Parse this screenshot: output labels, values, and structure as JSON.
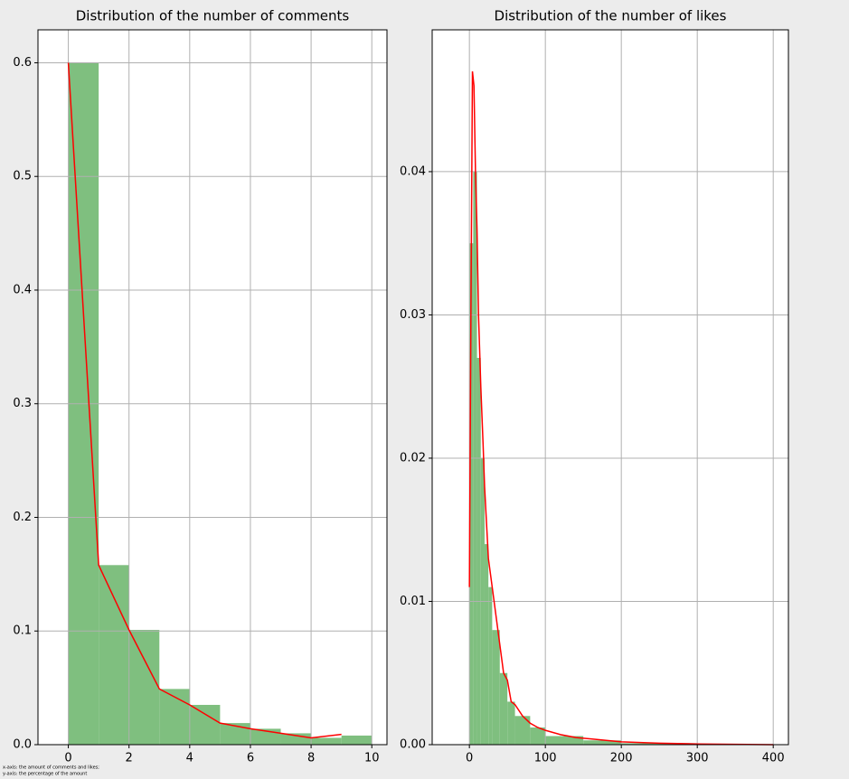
{
  "chart_data": [
    {
      "type": "histogram",
      "title": "Distribution of the number of comments",
      "bins": [
        0,
        1,
        2,
        3,
        4,
        5,
        6,
        7,
        8,
        9,
        10
      ],
      "values": [
        0.6,
        0.158,
        0.101,
        0.049,
        0.035,
        0.019,
        0.014,
        0.01,
        0.006,
        0.008
      ],
      "color": "#7fbf7f",
      "line": {
        "x": [
          0,
          1,
          2,
          3,
          4,
          5,
          6,
          7,
          8,
          9
        ],
        "values": [
          0.6,
          0.158,
          0.101,
          0.049,
          0.035,
          0.019,
          0.014,
          0.01,
          0.006,
          0.009
        ],
        "color": "#ff0000"
      },
      "xlim": [
        -1,
        10.5
      ],
      "xticks": [
        0,
        2,
        4,
        6,
        8,
        10
      ],
      "ylim": [
        0,
        0.629
      ],
      "yticks": [
        {
          "value": 0,
          "label": "0.0"
        },
        0.1,
        0.2,
        0.3,
        0.4,
        0.5,
        0.6
      ],
      "grid": true
    },
    {
      "type": "histogram",
      "title": "Distribution of the number of likes",
      "bins": [
        0,
        5,
        10,
        15,
        20,
        25,
        30,
        40,
        50,
        60,
        80,
        100,
        150,
        200,
        300,
        400
      ],
      "values": [
        0.035,
        0.04,
        0.027,
        0.02,
        0.014,
        0.011,
        0.008,
        0.005,
        0.003,
        0.002,
        0.0012,
        0.0006,
        0.0003,
        0.0001,
        3e-05
      ],
      "color": "#7fbf7f",
      "line": {
        "x": [
          0,
          2,
          4,
          6,
          8,
          10,
          12,
          15,
          18,
          20,
          25,
          30,
          35,
          40,
          45,
          50,
          55,
          60,
          70,
          80,
          90,
          100,
          120,
          140,
          160,
          180,
          200,
          250,
          300,
          400
        ],
        "values": [
          0.011,
          0.03,
          0.047,
          0.046,
          0.04,
          0.036,
          0.03,
          0.025,
          0.021,
          0.018,
          0.013,
          0.011,
          0.009,
          0.007,
          0.005,
          0.0045,
          0.003,
          0.0028,
          0.002,
          0.0015,
          0.0012,
          0.001,
          0.0007,
          0.0005,
          0.0004,
          0.0003,
          0.0002,
          0.0001,
          5e-05,
          0
        ],
        "color": "#ff0000"
      },
      "xlim": [
        -49,
        420
      ],
      "xticks": [
        0,
        100,
        200,
        300,
        400
      ],
      "ylim": [
        0,
        0.0499
      ],
      "yticks": [
        {
          "value": 0,
          "label": "0.00"
        },
        0.01,
        0.02,
        0.03,
        0.04
      ],
      "grid": true
    }
  ],
  "footnote": [
    "x-axis: the amount of comments and likes;",
    "y-axis: the percentage of the amount"
  ]
}
